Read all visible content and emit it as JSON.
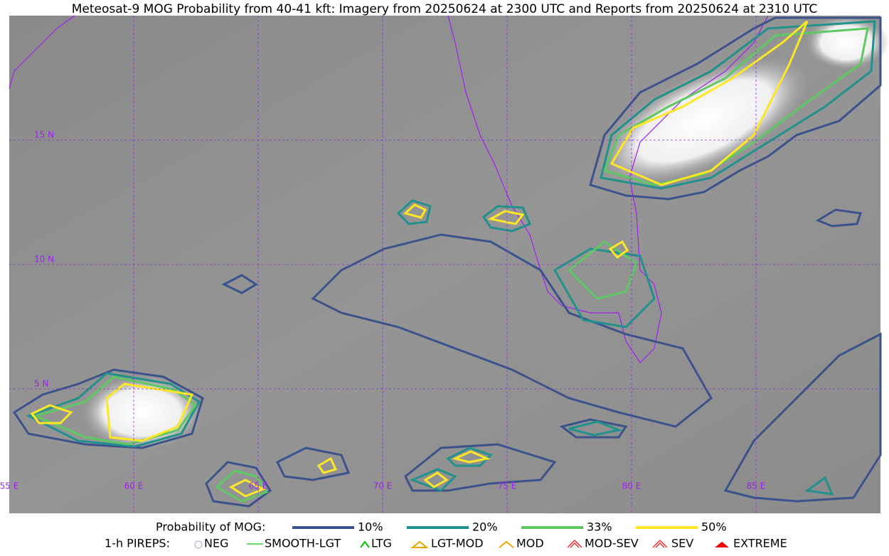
{
  "title": "Meteosat-9 MOG Probability from 40-41 kft: Imagery from 20250624 at 2300 UTC and Reports from 20250624 at 2310 UTC",
  "map": {
    "lat_labels": [
      "15 N",
      "10 N",
      "5 N"
    ],
    "lon_labels": [
      "55 E",
      "60 E",
      "65 E",
      "70 E",
      "75 E",
      "80 E",
      "85 E"
    ]
  },
  "legend": {
    "probability": {
      "label": "Probability of MOG:",
      "items": [
        "10%",
        "20%",
        "33%",
        "50%"
      ]
    },
    "pireps": {
      "label": "1-h PIREPS:",
      "items": [
        "NEG",
        "SMOOTH-LGT",
        "LTG",
        "LGT-MOD",
        "MOD",
        "MOD-SEV",
        "SEV",
        "EXTREME"
      ]
    }
  }
}
